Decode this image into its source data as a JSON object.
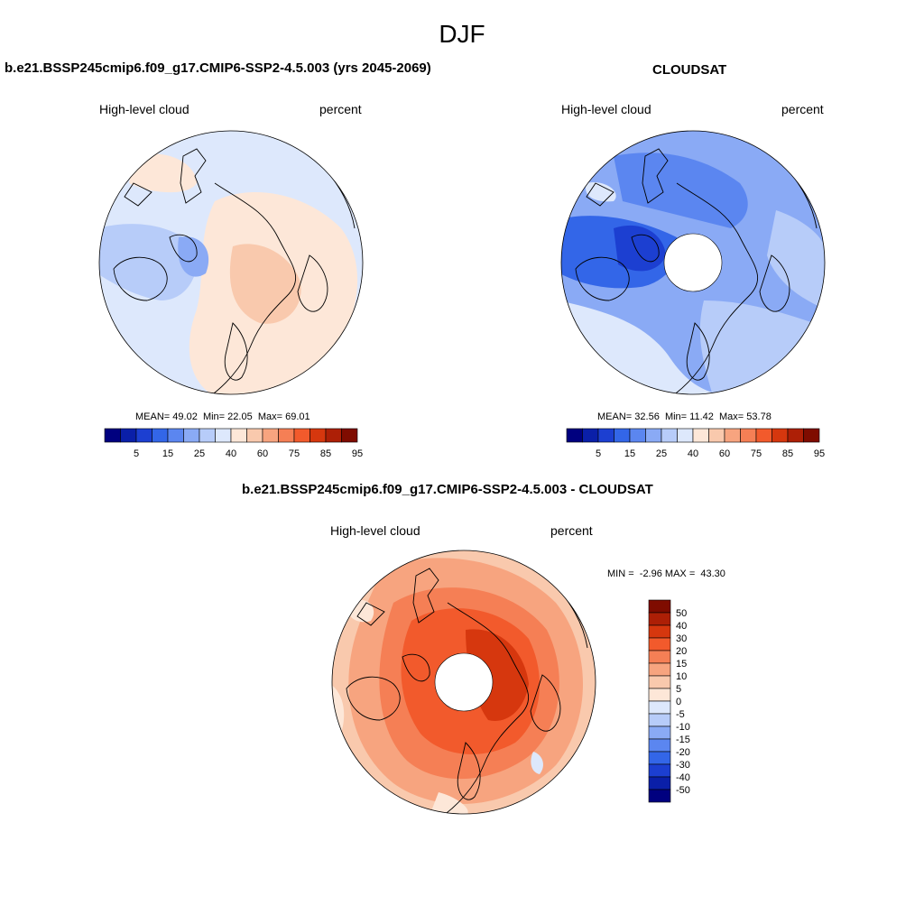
{
  "season": "DJF",
  "colorbar_colors": [
    "#00007f",
    "#0a1fa8",
    "#1c3fd1",
    "#3366e8",
    "#5b86f0",
    "#8aaaf5",
    "#b7ccf9",
    "#dde8fc",
    "#fde7d8",
    "#f9c9ad",
    "#f7a47f",
    "#f57f55",
    "#f25a2c",
    "#d6370e",
    "#ad1f06",
    "#7f0c00"
  ],
  "mean_colorbar_labels": [
    "5",
    "15",
    "25",
    "40",
    "60",
    "75",
    "85",
    "95"
  ],
  "diff_colorbar_labels": [
    "50",
    "40",
    "30",
    "20",
    "15",
    "10",
    "5",
    "0",
    "-5",
    "-10",
    "-15",
    "-20",
    "-30",
    "-40",
    "-50"
  ],
  "panels": [
    {
      "id": "model",
      "title": "b.e21.BSSP245cmip6.f09_g17.CMIP6-SSP2-4.5.003 (yrs 2045-2069)",
      "left_label": "High-level cloud",
      "right_label": "percent",
      "stats": {
        "mean_label": "MEAN=",
        "mean": "49.02",
        "min_label": "Min=",
        "min": "22.05",
        "max_label": "Max=",
        "max": "69.01"
      }
    },
    {
      "id": "obs",
      "title": "CLOUDSAT",
      "left_label": "High-level cloud",
      "right_label": "percent",
      "stats": {
        "mean_label": "MEAN=",
        "mean": "32.56",
        "min_label": "Min=",
        "min": "11.42",
        "max_label": "Max=",
        "max": "53.78"
      }
    },
    {
      "id": "diff",
      "title": "b.e21.BSSP245cmip6.f09_g17.CMIP6-SSP2-4.5.003 - CLOUDSAT",
      "left_label": "High-level cloud",
      "right_label": "percent",
      "stats": {
        "min_label": "MIN =",
        "min": "-2.96",
        "max_label": "MAX =",
        "max": "43.30"
      }
    }
  ]
}
